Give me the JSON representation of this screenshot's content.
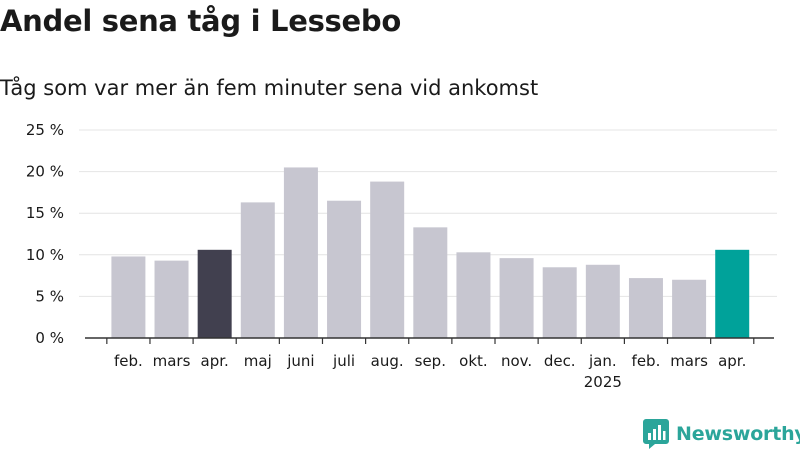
{
  "title": "Andel sena tåg i Lessebo",
  "subtitle": "Tåg som var mer än fem minuter sena vid ankomst",
  "logo_text": "Newsworthy",
  "colors": {
    "default": "#c7c6d0",
    "highlight_start": "#41404f",
    "highlight_end": "#00a29a",
    "grid": "#e4e4e4",
    "logo": "#2ba59a"
  },
  "chart_data": {
    "type": "bar",
    "categories": [
      "feb.",
      "mars",
      "apr.",
      "maj",
      "juni",
      "juli",
      "aug.",
      "sep.",
      "okt.",
      "nov.",
      "dec.",
      "jan.",
      "feb.",
      "mars",
      "apr."
    ],
    "year_labels": [
      "",
      "",
      "",
      "",
      "",
      "",
      "",
      "",
      "",
      "",
      "",
      "2025",
      "",
      "",
      ""
    ],
    "values": [
      9.8,
      9.3,
      10.6,
      16.3,
      20.5,
      16.5,
      18.8,
      13.3,
      10.3,
      9.6,
      8.5,
      8.8,
      7.2,
      7.0,
      10.6
    ],
    "highlight": [
      "",
      "",
      "start",
      "",
      "",
      "",
      "",
      "",
      "",
      "",
      "",
      "",
      "",
      "",
      "end"
    ],
    "yticks": [
      0,
      5,
      10,
      15,
      20,
      25
    ],
    "ytick_labels": [
      "0 %",
      "5 %",
      "10 %",
      "15 %",
      "20 %",
      "25 %"
    ],
    "ylim": [
      0,
      25
    ],
    "grid": true
  }
}
